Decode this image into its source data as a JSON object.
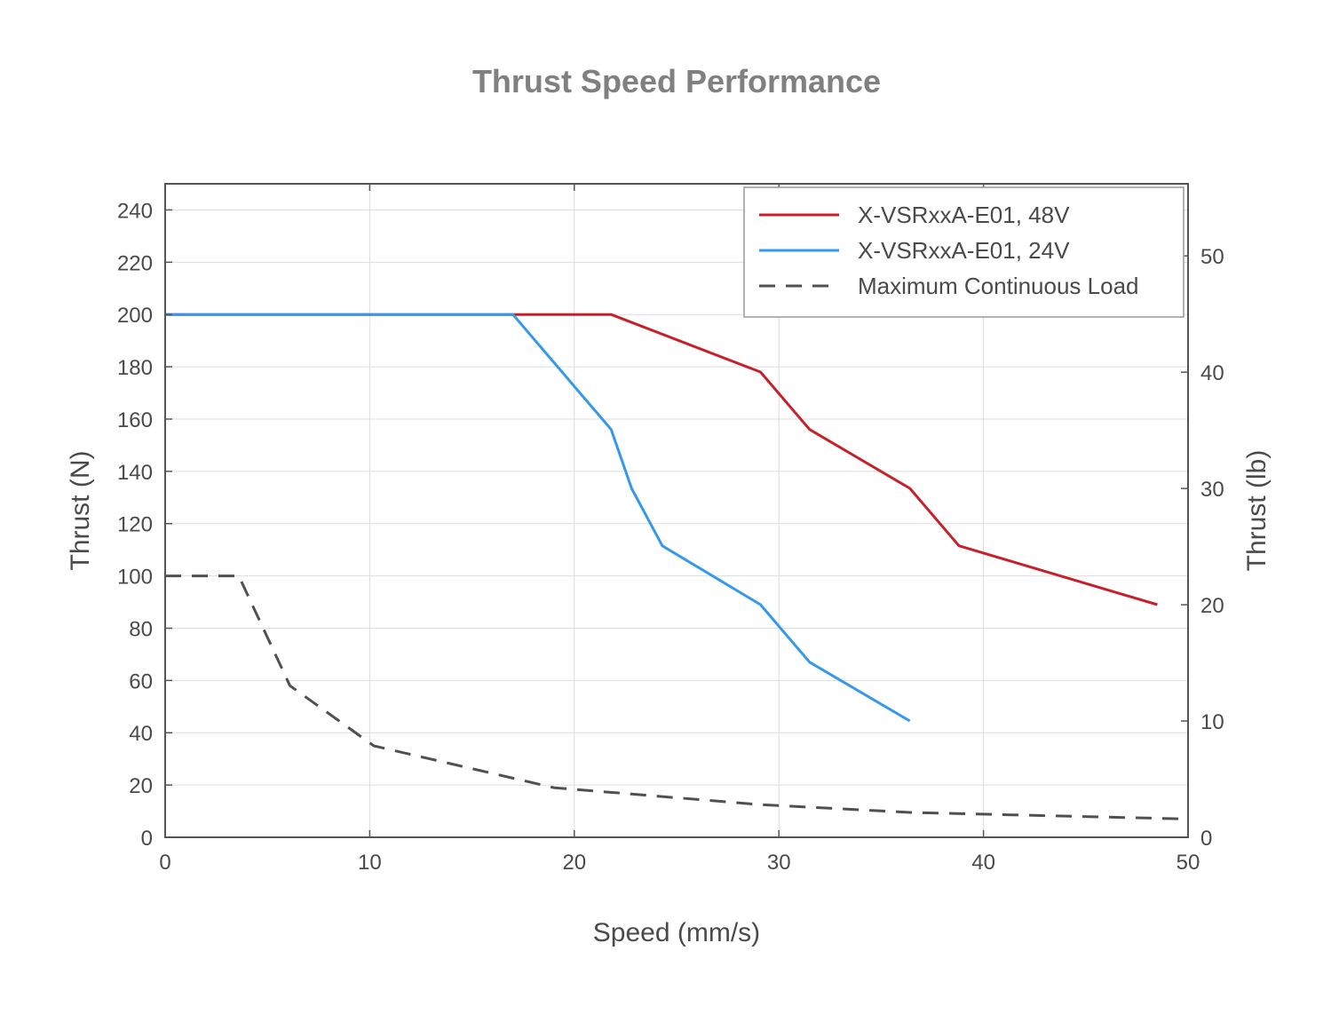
{
  "chart_data": {
    "type": "line",
    "title": "Thrust Speed Performance",
    "xlabel": "Speed (mm/s)",
    "ylabel": "Thrust (N)",
    "y2label": "Thrust (lb)",
    "xlim": [
      0,
      50
    ],
    "ylim": [
      0,
      250
    ],
    "y2lim": [
      0,
      56.2
    ],
    "xticks": [
      0,
      10,
      20,
      30,
      40,
      50
    ],
    "yticks": [
      0,
      20,
      40,
      60,
      80,
      100,
      120,
      140,
      160,
      180,
      200,
      220,
      240
    ],
    "y2ticks": [
      0,
      10,
      20,
      30,
      40,
      50
    ],
    "grid": true,
    "legend_position": "top-right",
    "series": [
      {
        "name": "X-VSRxxA-E01, 48V",
        "color": "#c8202a",
        "style": "solid",
        "x": [
          0,
          17,
          21.8,
          29.1,
          31.5,
          36.4,
          38.8,
          48.5
        ],
        "y": [
          200,
          200,
          200,
          178,
          156,
          133.5,
          111.5,
          89
        ]
      },
      {
        "name": "X-VSRxxA-E01, 24V",
        "color": "#3399ee",
        "style": "solid",
        "x": [
          0,
          17,
          21.8,
          22.8,
          24.3,
          29.1,
          31.5,
          36.4
        ],
        "y": [
          200,
          200,
          156,
          133.5,
          111.5,
          89,
          67,
          44.5
        ]
      },
      {
        "name": "Maximum Continuous Load",
        "color": "#505050",
        "style": "dashed",
        "x": [
          0,
          3.6,
          6.1,
          10.2,
          19.0,
          29.1,
          36.4,
          50
        ],
        "y": [
          100,
          100,
          58,
          35,
          19,
          12.5,
          9.5,
          7
        ]
      }
    ]
  }
}
